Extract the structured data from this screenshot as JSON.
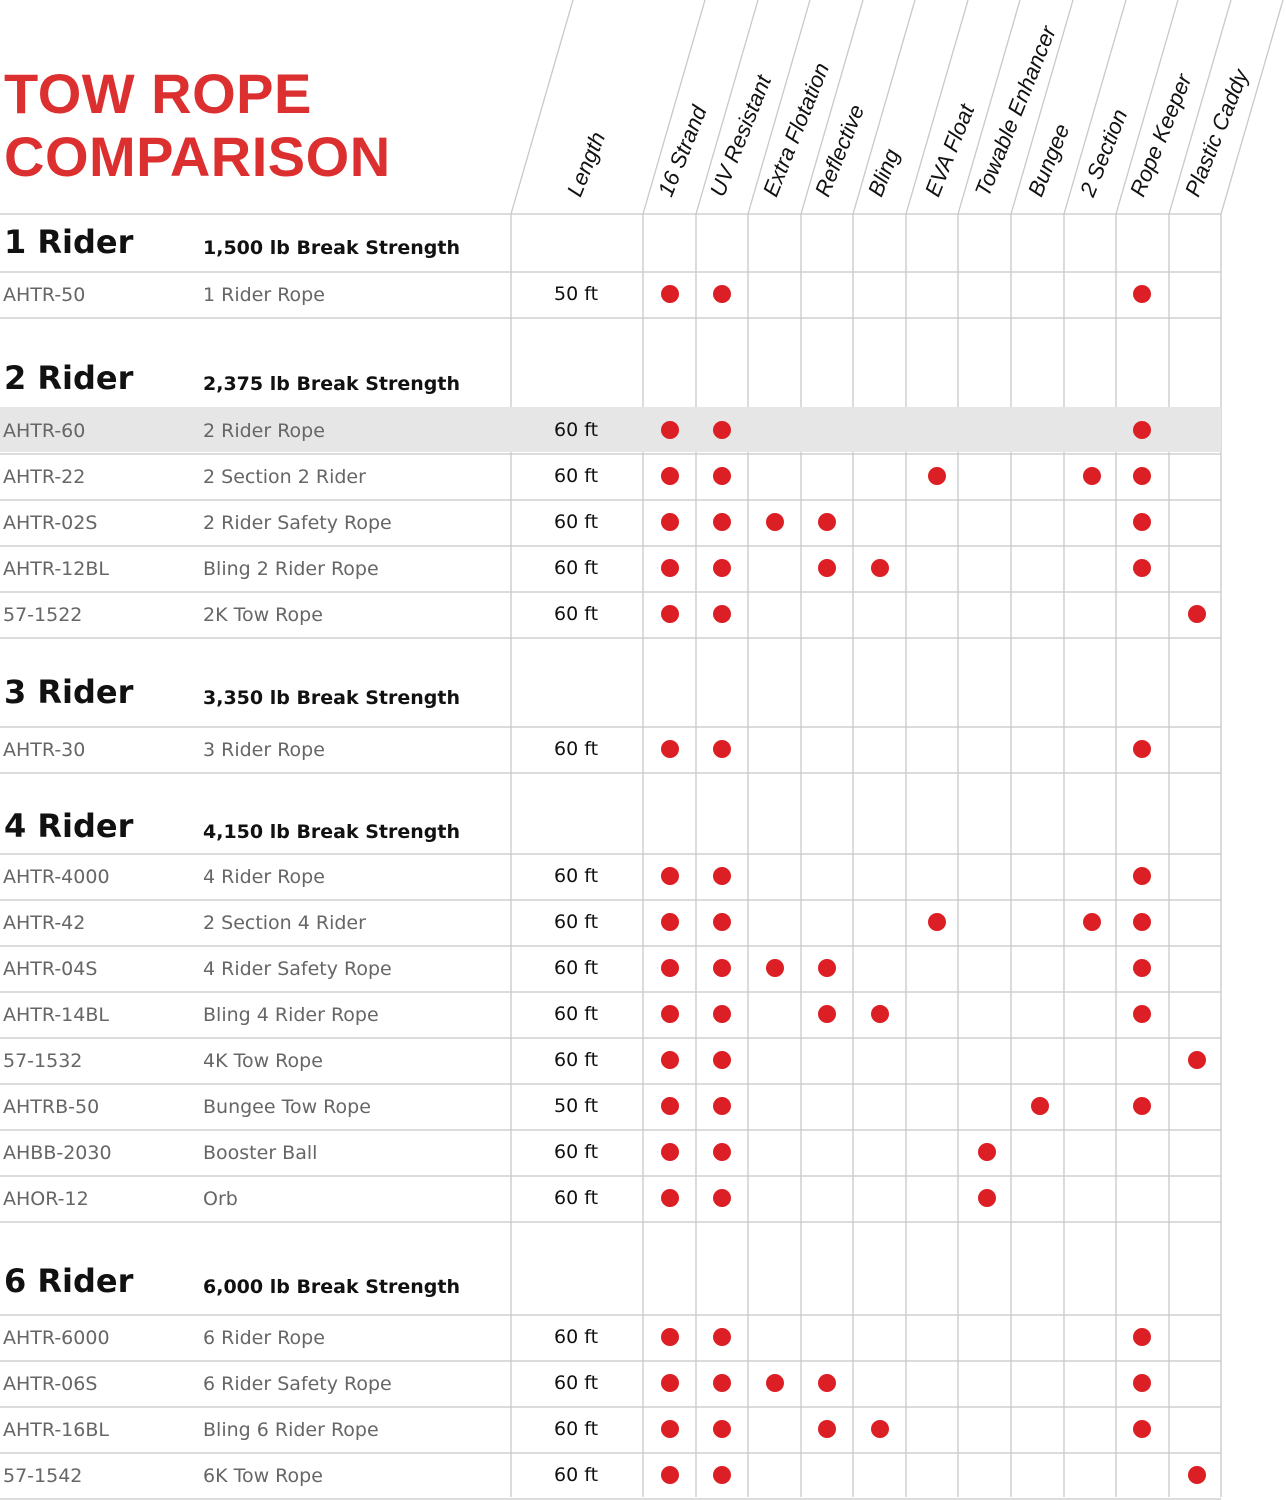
{
  "title": {
    "line1": "TOW ROPE",
    "line2": "COMPARISON"
  },
  "colors": {
    "accent": "#dc2f2f",
    "dot": "#dc1f24",
    "grid": "#c8c8c8",
    "highlight": "#e6e6e6"
  },
  "columns": {
    "length": "Length",
    "features": [
      "16 Strand",
      "UV Resistant",
      "Extra Flotation",
      "Reflective",
      "Bling",
      "EVA Float",
      "Towable Enhancer",
      "Bungee",
      "2 Section",
      "Rope Keeper",
      "Plastic Caddy"
    ]
  },
  "groups": [
    {
      "title": "1 Rider",
      "strength": "1,500 lb Break Strength",
      "rows": [
        {
          "sku": "AHTR-50",
          "name": "1 Rider Rope",
          "length": "50 ft",
          "features": [
            1,
            1,
            0,
            0,
            0,
            0,
            0,
            0,
            0,
            1,
            0
          ]
        }
      ]
    },
    {
      "title": "2 Rider",
      "strength": "2,375 lb Break Strength",
      "rows": [
        {
          "sku": "AHTR-60",
          "name": "2 Rider Rope",
          "length": "60 ft",
          "features": [
            1,
            1,
            0,
            0,
            0,
            0,
            0,
            0,
            0,
            1,
            0
          ],
          "highlighted": true
        },
        {
          "sku": "AHTR-22",
          "name": "2 Section 2 Rider",
          "length": "60 ft",
          "features": [
            1,
            1,
            0,
            0,
            0,
            1,
            0,
            0,
            1,
            1,
            0
          ]
        },
        {
          "sku": "AHTR-02S",
          "name": "2 Rider Safety Rope",
          "length": "60 ft",
          "features": [
            1,
            1,
            1,
            1,
            0,
            0,
            0,
            0,
            0,
            1,
            0
          ]
        },
        {
          "sku": "AHTR-12BL",
          "name": "Bling 2 Rider Rope",
          "length": "60 ft",
          "features": [
            1,
            1,
            0,
            1,
            1,
            0,
            0,
            0,
            0,
            1,
            0
          ]
        },
        {
          "sku": "57-1522",
          "name": "2K Tow Rope",
          "length": "60 ft",
          "features": [
            1,
            1,
            0,
            0,
            0,
            0,
            0,
            0,
            0,
            0,
            1
          ]
        }
      ]
    },
    {
      "title": "3 Rider",
      "strength": "3,350 lb Break Strength",
      "rows": [
        {
          "sku": "AHTR-30",
          "name": "3 Rider Rope",
          "length": "60 ft",
          "features": [
            1,
            1,
            0,
            0,
            0,
            0,
            0,
            0,
            0,
            1,
            0
          ]
        }
      ]
    },
    {
      "title": "4 Rider",
      "strength": "4,150 lb Break Strength",
      "rows": [
        {
          "sku": "AHTR-4000",
          "name": "4 Rider Rope",
          "length": "60 ft",
          "features": [
            1,
            1,
            0,
            0,
            0,
            0,
            0,
            0,
            0,
            1,
            0
          ]
        },
        {
          "sku": "AHTR-42",
          "name": "2 Section 4 Rider",
          "length": "60 ft",
          "features": [
            1,
            1,
            0,
            0,
            0,
            1,
            0,
            0,
            1,
            1,
            0
          ]
        },
        {
          "sku": "AHTR-04S",
          "name": "4 Rider Safety Rope",
          "length": "60 ft",
          "features": [
            1,
            1,
            1,
            1,
            0,
            0,
            0,
            0,
            0,
            1,
            0
          ]
        },
        {
          "sku": "AHTR-14BL",
          "name": "Bling 4 Rider Rope",
          "length": "60 ft",
          "features": [
            1,
            1,
            0,
            1,
            1,
            0,
            0,
            0,
            0,
            1,
            0
          ]
        },
        {
          "sku": "57-1532",
          "name": "4K Tow Rope",
          "length": "60 ft",
          "features": [
            1,
            1,
            0,
            0,
            0,
            0,
            0,
            0,
            0,
            0,
            1
          ]
        },
        {
          "sku": "AHTRB-50",
          "name": "Bungee Tow Rope",
          "length": "50 ft",
          "features": [
            1,
            1,
            0,
            0,
            0,
            0,
            0,
            1,
            0,
            1,
            0
          ]
        },
        {
          "sku": "AHBB-2030",
          "name": "Booster Ball",
          "length": "60 ft",
          "features": [
            1,
            1,
            0,
            0,
            0,
            0,
            1,
            0,
            0,
            0,
            0
          ]
        },
        {
          "sku": "AHOR-12",
          "name": "Orb",
          "length": "60 ft",
          "features": [
            1,
            1,
            0,
            0,
            0,
            0,
            1,
            0,
            0,
            0,
            0
          ]
        }
      ]
    },
    {
      "title": "6 Rider",
      "strength": "6,000 lb Break Strength",
      "rows": [
        {
          "sku": "AHTR-6000",
          "name": "6 Rider Rope",
          "length": "60 ft",
          "features": [
            1,
            1,
            0,
            0,
            0,
            0,
            0,
            0,
            0,
            1,
            0
          ]
        },
        {
          "sku": "AHTR-06S",
          "name": "6 Rider Safety Rope",
          "length": "60 ft",
          "features": [
            1,
            1,
            1,
            1,
            0,
            0,
            0,
            0,
            0,
            1,
            0
          ]
        },
        {
          "sku": "AHTR-16BL",
          "name": "Bling 6 Rider Rope",
          "length": "60 ft",
          "features": [
            1,
            1,
            0,
            1,
            1,
            0,
            0,
            0,
            0,
            1,
            0
          ]
        },
        {
          "sku": "57-1542",
          "name": "6K Tow Rope",
          "length": "60 ft",
          "features": [
            1,
            1,
            0,
            0,
            0,
            0,
            0,
            0,
            0,
            0,
            1
          ]
        }
      ]
    }
  ]
}
